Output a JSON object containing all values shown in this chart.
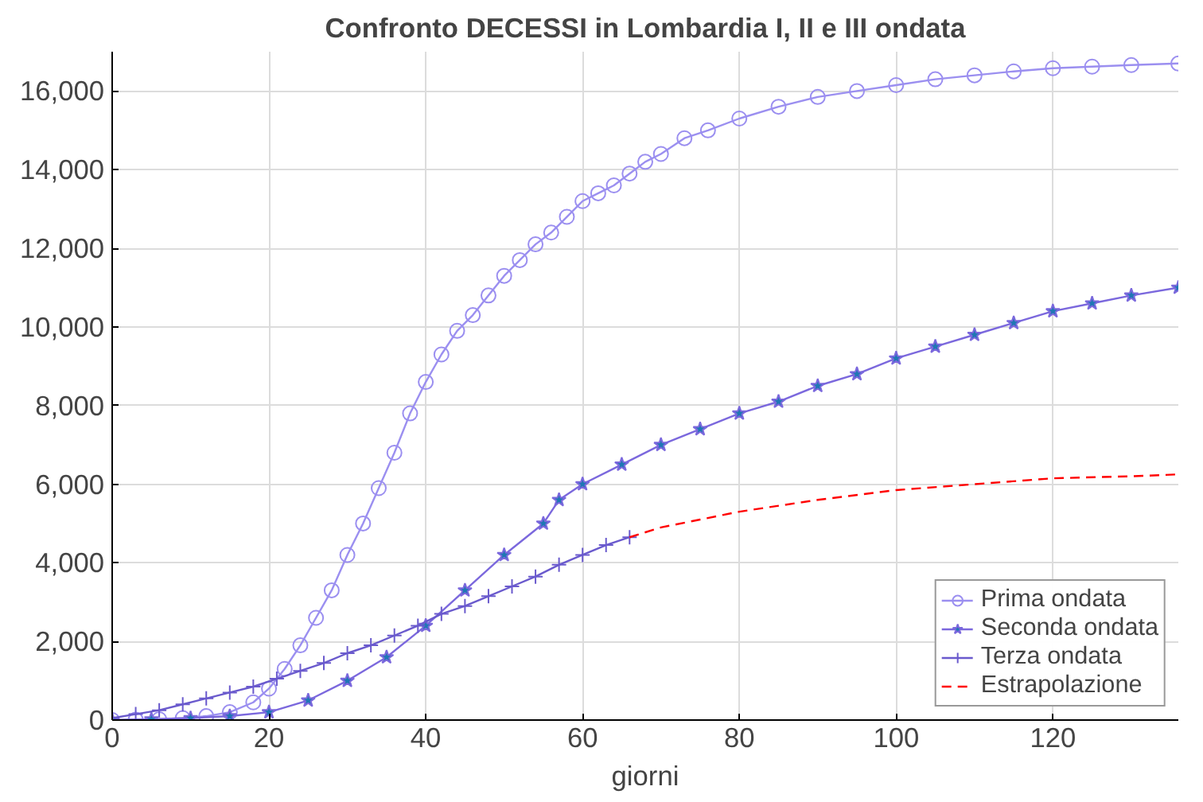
{
  "chart_data": {
    "type": "line",
    "title": "Confronto DECESSI in Lombardia I, II e III ondata",
    "xlabel": "giorni",
    "xlim": [
      0,
      136
    ],
    "ylim": [
      0,
      17000
    ],
    "xticks": [
      0,
      20,
      40,
      60,
      80,
      100,
      120
    ],
    "yticks": [
      0,
      {
        "value": 2000,
        "label": "2,000"
      },
      {
        "value": 4000,
        "label": "4,000"
      },
      {
        "value": 6000,
        "label": "6,000"
      },
      {
        "value": 8000,
        "label": "8,000"
      },
      {
        "value": 10000,
        "label": "10,000"
      },
      {
        "value": 12000,
        "label": "12,000"
      },
      {
        "value": 14000,
        "label": "14,000"
      },
      {
        "value": 16000,
        "label": "16,000"
      }
    ],
    "grid": true,
    "legend": "bottom right",
    "series": [
      {
        "name": "Prima ondata",
        "color": "#9b8ff0",
        "marker": "circle",
        "x": [
          0,
          3,
          6,
          9,
          12,
          15,
          18,
          20,
          22,
          24,
          26,
          28,
          30,
          32,
          34,
          36,
          38,
          40,
          42,
          44,
          46,
          48,
          50,
          52,
          54,
          56,
          58,
          60,
          62,
          64,
          66,
          68,
          70,
          73,
          76,
          80,
          85,
          90,
          95,
          100,
          105,
          110,
          115,
          120,
          125,
          130,
          136
        ],
        "values": [
          0,
          10,
          20,
          50,
          100,
          200,
          450,
          800,
          1300,
          1900,
          2600,
          3300,
          4200,
          5000,
          5900,
          6800,
          7800,
          8600,
          9300,
          9900,
          10300,
          10800,
          11300,
          11700,
          12100,
          12400,
          12800,
          13200,
          13400,
          13600,
          13900,
          14200,
          14400,
          14800,
          15000,
          15300,
          15600,
          15850,
          16000,
          16150,
          16300,
          16400,
          16500,
          16580,
          16620,
          16660,
          16700
        ]
      },
      {
        "name": "Seconda ondata",
        "color": "#7b68dd",
        "marker": "star",
        "x": [
          0,
          5,
          10,
          15,
          20,
          25,
          30,
          35,
          40,
          45,
          50,
          55,
          57,
          60,
          65,
          70,
          75,
          80,
          85,
          90,
          95,
          100,
          105,
          110,
          115,
          120,
          125,
          130,
          136
        ],
        "values": [
          0,
          20,
          50,
          100,
          200,
          500,
          1000,
          1600,
          2400,
          3300,
          4200,
          5000,
          5600,
          6000,
          6500,
          7000,
          7400,
          7800,
          8100,
          8500,
          8800,
          9200,
          9500,
          9800,
          10100,
          10400,
          10600,
          10800,
          11000
        ]
      },
      {
        "name": "Terza ondata",
        "color": "#6a5acd",
        "marker": "cross",
        "x": [
          0,
          3,
          6,
          9,
          12,
          15,
          18,
          21,
          24,
          27,
          30,
          33,
          36,
          39,
          42,
          45,
          48,
          51,
          54,
          57,
          60,
          63,
          66
        ],
        "values": [
          50,
          150,
          250,
          400,
          550,
          700,
          850,
          1050,
          1250,
          1450,
          1700,
          1900,
          2150,
          2400,
          2700,
          2900,
          3150,
          3400,
          3650,
          3950,
          4200,
          4450,
          4650
        ]
      },
      {
        "name": "Estrapolazione",
        "color": "#ff0000",
        "marker": "none",
        "line_style": "dashed",
        "x": [
          66,
          70,
          75,
          80,
          90,
          100,
          110,
          120,
          130,
          136
        ],
        "values": [
          4650,
          4900,
          5100,
          5300,
          5600,
          5850,
          6000,
          6150,
          6200,
          6250
        ]
      }
    ]
  }
}
